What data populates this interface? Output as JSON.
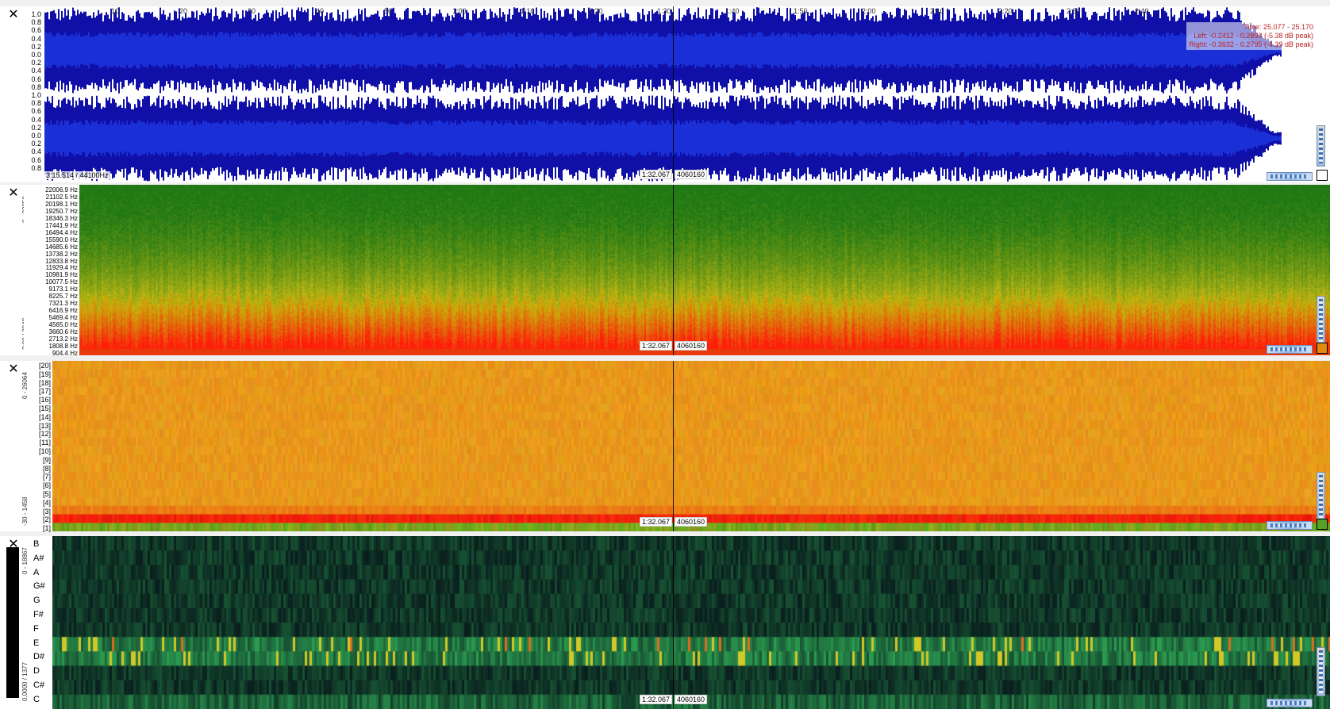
{
  "waveform": {
    "close_label": "✕",
    "time_ticks": [
      "10",
      "20",
      "30",
      "40",
      "50",
      "1:00",
      "1:10",
      "1:20",
      "1:30",
      "1:40",
      "1:50",
      "2:00",
      "2:10",
      "2:20",
      "2:30",
      "2:40"
    ],
    "amp_ticks_top": [
      "1.0",
      "0.8",
      "0.6",
      "0.4",
      "0.2",
      "0.0",
      "0.2",
      "0.4",
      "0.6",
      "0.8"
    ],
    "amp_ticks_bottom": [
      "1.0",
      "0.8",
      "0.6",
      "0.4",
      "0.2",
      "0.0",
      "0.2",
      "0.4",
      "0.6",
      "0.8"
    ],
    "info_time": "Time: 25.077 - 25.170",
    "info_left": "Left: -0.2412 - 0.2893 (-5.38 dB peak)",
    "info_right": "Right: -0.3632 - 0.2795 (-4.39 dB peak)",
    "duration_label": "3:15.514 / 44100Hz",
    "cursor_time": "1:32.067",
    "cursor_sample": "4060160",
    "wave_color": "#1010a8",
    "wave_core_color": "#1a2fd6"
  },
  "spectrogram": {
    "close_label": "✕",
    "side_top": "0 - 22050",
    "side_bottom": "2:80 / 2048",
    "freq_ticks": [
      "22006.9 Hz",
      "21102.5 Hz",
      "20198.1 Hz",
      "19250.7 Hz",
      "18346.3 Hz",
      "17441.9 Hz",
      "16494.4 Hz",
      "15590.0 Hz",
      "14685.6 Hz",
      "13738.2 Hz",
      "12833.8 Hz",
      "11929.4 Hz",
      "10981.9 Hz",
      "10077.5 Hz",
      "9173.1 Hz",
      "8225.7 Hz",
      "7321.3 Hz",
      "6416.9 Hz",
      "5469.4 Hz",
      "4565.0 Hz",
      "3660.6 Hz",
      "2713.2 Hz",
      "1808.8 Hz",
      "904.4 Hz"
    ],
    "cursor_time": "1:32.067",
    "cursor_sample": "4060160"
  },
  "bands": {
    "close_label": "✕",
    "side_top": "0 - 26064",
    "side_bottom": "-30 - 1458",
    "band_ticks": [
      "[20]",
      "[19]",
      "[18]",
      "[17]",
      "[16]",
      "[15]",
      "[14]",
      "[13]",
      "[12]",
      "[11]",
      "[10]",
      "[9]",
      "[8]",
      "[7]",
      "[6]",
      "[5]",
      "[4]",
      "[3]",
      "[2]",
      "[1]"
    ],
    "cursor_time": "1:32.067",
    "cursor_sample": "4060160"
  },
  "chroma": {
    "close_label": "✕",
    "side_top": "0 - 18867",
    "side_bottom": "0.0000 / 1377",
    "notes": [
      "B",
      "A#",
      "A",
      "G#",
      "G",
      "F#",
      "F",
      "E",
      "D#",
      "D",
      "C#",
      "C"
    ],
    "cursor_time": "1:32.067",
    "cursor_sample": "4060160"
  }
}
